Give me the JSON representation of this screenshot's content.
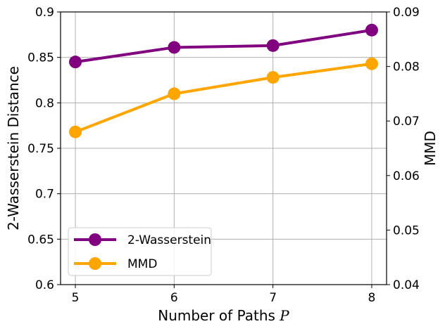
{
  "chart_data": {
    "type": "line",
    "x": [
      5,
      6,
      7,
      8
    ],
    "xlabel": "Number of Paths",
    "xlabel_variable": "P",
    "ylabel": "2-Wasserstein Distance",
    "y2label": "MMD",
    "xlim": [
      4.85,
      8.15
    ],
    "ylim": [
      0.6,
      0.9
    ],
    "y2lim": [
      0.04,
      0.09
    ],
    "xticks": [
      "5",
      "6",
      "7",
      "8"
    ],
    "yticks": [
      "0.6",
      "0.65",
      "0.7",
      "0.75",
      "0.8",
      "0.85",
      "0.9"
    ],
    "y2ticks": [
      "0.04",
      "0.05",
      "0.06",
      "0.07",
      "0.08",
      "0.09"
    ],
    "grid": true,
    "legend_position": "lower-left",
    "series": [
      {
        "name": "2-Wasserstein",
        "axis": "left",
        "color": "#800080",
        "values": [
          0.845,
          0.861,
          0.863,
          0.88
        ]
      },
      {
        "name": "MMD",
        "axis": "right",
        "color": "#FFA500",
        "values": [
          0.068,
          0.075,
          0.078,
          0.0805
        ]
      }
    ]
  }
}
